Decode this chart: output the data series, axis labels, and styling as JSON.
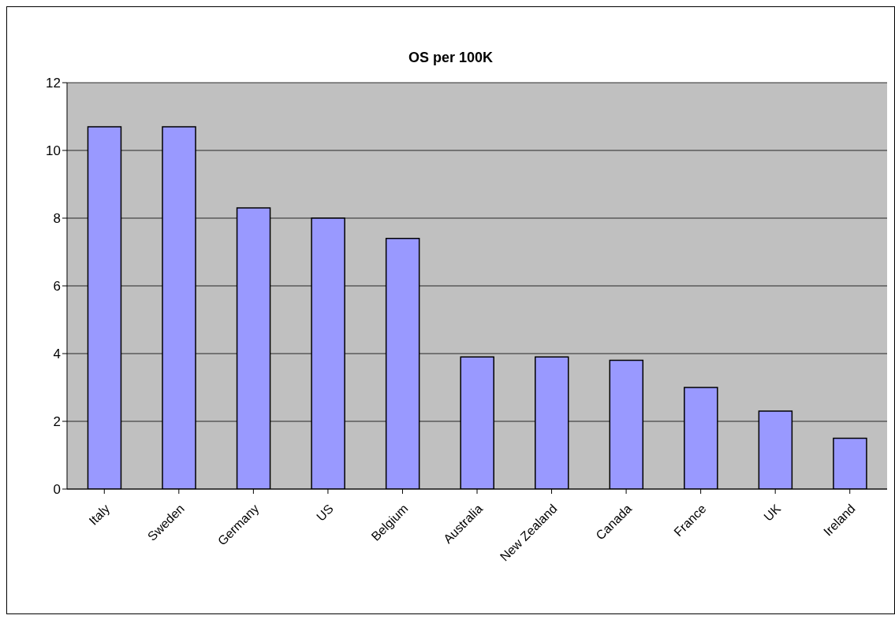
{
  "chart_data": {
    "type": "bar",
    "title": "OS per 100K",
    "categories": [
      "Italy",
      "Sweden",
      "Germany",
      "US",
      "Belgium",
      "Australia",
      "New Zealand",
      "Canada",
      "France",
      "UK",
      "Ireland"
    ],
    "values": [
      10.7,
      10.7,
      8.3,
      8.0,
      7.4,
      3.9,
      3.9,
      3.8,
      3.0,
      2.3,
      1.5
    ],
    "color": "#9999ff",
    "ylim": [
      0,
      12
    ],
    "yticks": [
      0,
      2,
      4,
      6,
      8,
      10,
      12
    ],
    "grid": "y"
  }
}
